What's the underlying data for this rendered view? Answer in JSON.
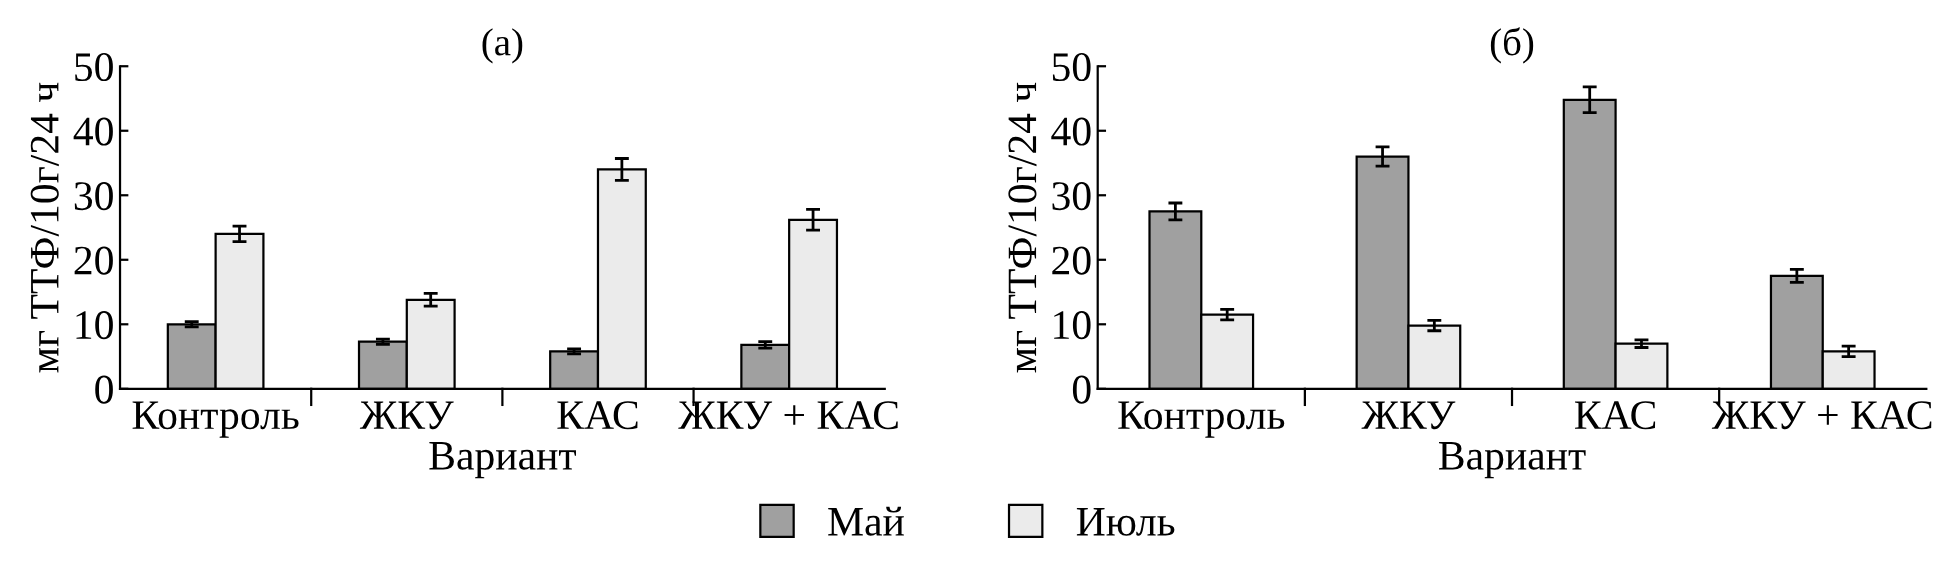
{
  "chart_data": [
    {
      "type": "bar",
      "title": "(a)",
      "xlabel": "Вариант",
      "ylabel": "мг ТТФ/10г/24 ч",
      "categories": [
        "Контроль",
        "ЖКУ",
        "КАС",
        "ЖКУ + КАС"
      ],
      "ylim": [
        0,
        50
      ],
      "yticks": [
        0,
        10,
        20,
        30,
        40,
        50
      ],
      "grid": false,
      "legend": "bottom",
      "series": [
        {
          "name": "Май",
          "color": "#a0a0a0",
          "values": [
            10,
            7.3,
            5.8,
            6.8
          ],
          "errors": [
            0.4,
            0.4,
            0.4,
            0.5
          ]
        },
        {
          "name": "Июль",
          "color": "#ebebeb",
          "values": [
            24,
            13.8,
            34,
            26.2
          ],
          "errors": [
            1.2,
            1,
            1.7,
            1.6
          ]
        }
      ]
    },
    {
      "type": "bar",
      "title": "(б)",
      "xlabel": "Вариант",
      "ylabel": "мг ТТФ/10г/24 ч",
      "categories": [
        "Контроль",
        "ЖКУ",
        "КАС",
        "ЖКУ + КАС"
      ],
      "ylim": [
        0,
        50
      ],
      "yticks": [
        0,
        10,
        20,
        30,
        40,
        50
      ],
      "grid": false,
      "series": [
        {
          "color": "#a0a0a0",
          "values": [
            27.5,
            36,
            44.8,
            17.5
          ],
          "errors": [
            1.3,
            1.5,
            2,
            1
          ]
        },
        {
          "color": "#ebebeb",
          "values": [
            11.5,
            9.8,
            7,
            5.8
          ],
          "errors": [
            0.8,
            0.8,
            0.6,
            0.8
          ]
        }
      ]
    }
  ]
}
